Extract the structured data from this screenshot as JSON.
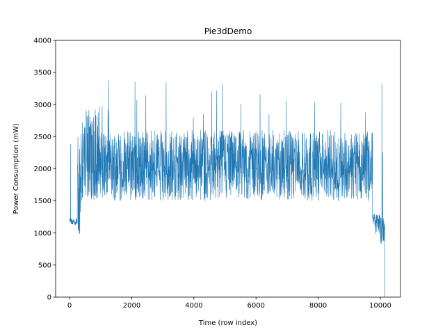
{
  "chart_data": {
    "type": "line",
    "title": "Pie3dDemo",
    "xlabel": "Time (row index)",
    "ylabel": "Power Consumption (mW)",
    "xlim": [
      -450,
      10650
    ],
    "ylim": [
      0,
      4000
    ],
    "xticks": [
      0,
      2000,
      4000,
      6000,
      8000,
      10000
    ],
    "yticks": [
      0,
      500,
      1000,
      1500,
      2000,
      2500,
      3000,
      3500,
      4000
    ],
    "grid": false,
    "legend": "none",
    "line_color": "#1f77b4",
    "series": [
      {
        "x_range": [
          0,
          10150
        ],
        "segments": [
          {
            "x": [
              0,
              250
            ],
            "baseline": 1170,
            "low": 1120,
            "high": 1230
          },
          {
            "x": [
              250,
              350
            ],
            "baseline": 1150,
            "low": 930,
            "high": 2500
          },
          {
            "x": [
              350,
              1000
            ],
            "baseline": 2050,
            "low": 1500,
            "high": 3000
          },
          {
            "x": [
              1000,
              9750
            ],
            "baseline": 2000,
            "low": 1500,
            "high": 2600
          },
          {
            "x": [
              9750,
              10000
            ],
            "baseline": 1200,
            "low": 980,
            "high": 1300
          },
          {
            "x": [
              10000,
              10150
            ],
            "baseline": 1050,
            "low": 820,
            "high": 1300
          }
        ],
        "notable_points": [
          {
            "x": 30,
            "y": 2380
          },
          {
            "x": 10050,
            "y": 3320
          },
          {
            "x": 10080,
            "y": 2250
          },
          {
            "x": 10150,
            "y": 0
          }
        ],
        "max_spike": 3400
      }
    ]
  }
}
